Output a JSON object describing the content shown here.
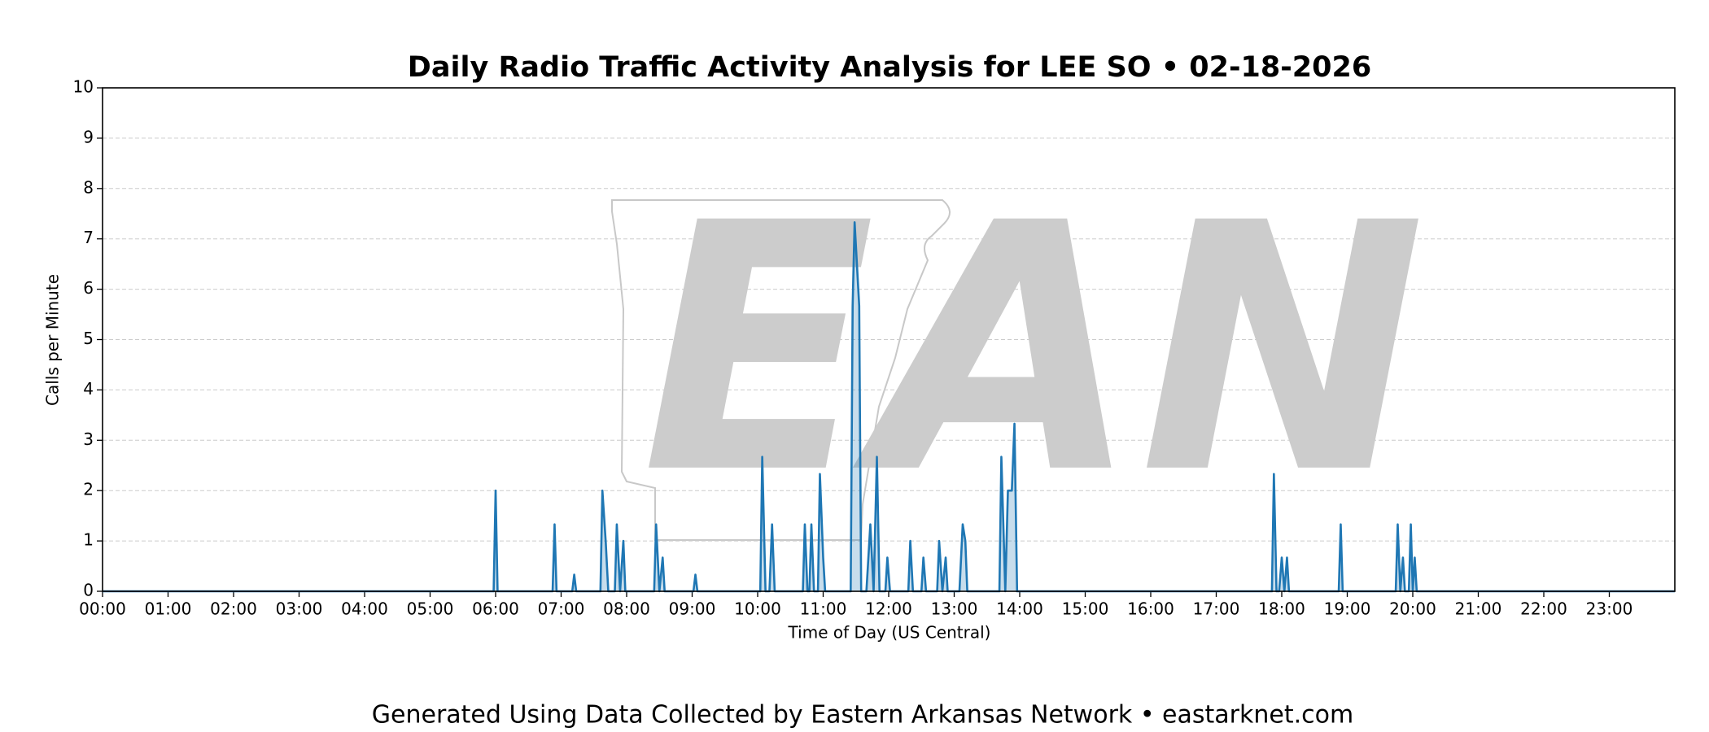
{
  "chart_data": {
    "type": "line",
    "title": "Daily Radio Traffic Activity Analysis for LEE SO • 02-18-2026",
    "x_label": "Time of Day (US Central)",
    "y_label": "Calls per Minute",
    "watermark": "EAN",
    "footer": "Generated Using Data Collected by Eastern Arkansas Network • eastarknet.com",
    "xlim": [
      0,
      24
    ],
    "ylim": [
      0,
      10
    ],
    "yticks": [
      0,
      1,
      2,
      3,
      4,
      5,
      6,
      7,
      8,
      9,
      10
    ],
    "xticks": [
      {
        "value": 0,
        "label": "00:00"
      },
      {
        "value": 1,
        "label": "01:00"
      },
      {
        "value": 2,
        "label": "02:00"
      },
      {
        "value": 3,
        "label": "03:00"
      },
      {
        "value": 4,
        "label": "04:00"
      },
      {
        "value": 5,
        "label": "05:00"
      },
      {
        "value": 6,
        "label": "06:00"
      },
      {
        "value": 7,
        "label": "07:00"
      },
      {
        "value": 8,
        "label": "08:00"
      },
      {
        "value": 9,
        "label": "09:00"
      },
      {
        "value": 10,
        "label": "10:00"
      },
      {
        "value": 11,
        "label": "11:00"
      },
      {
        "value": 12,
        "label": "12:00"
      },
      {
        "value": 13,
        "label": "13:00"
      },
      {
        "value": 14,
        "label": "14:00"
      },
      {
        "value": 15,
        "label": "15:00"
      },
      {
        "value": 16,
        "label": "16:00"
      },
      {
        "value": 17,
        "label": "17:00"
      },
      {
        "value": 18,
        "label": "18:00"
      },
      {
        "value": 19,
        "label": "19:00"
      },
      {
        "value": 20,
        "label": "20:00"
      },
      {
        "value": 21,
        "label": "21:00"
      },
      {
        "value": 22,
        "label": "22:00"
      },
      {
        "value": 23,
        "label": "23:00"
      }
    ],
    "grid": true,
    "color": "#1f77b4",
    "x": [
      0,
      5.97,
      6.0,
      6.03,
      6.87,
      6.9,
      6.93,
      7.17,
      7.2,
      7.23,
      7.6,
      7.63,
      7.68,
      7.72,
      7.82,
      7.85,
      7.9,
      7.95,
      7.98,
      8.42,
      8.45,
      8.5,
      8.55,
      8.58,
      9.02,
      9.05,
      9.08,
      10.04,
      10.07,
      10.12,
      10.18,
      10.22,
      10.26,
      10.69,
      10.72,
      10.76,
      10.79,
      10.82,
      10.86,
      10.92,
      10.95,
      11.0,
      11.03,
      11.42,
      11.45,
      11.48,
      11.55,
      11.58,
      11.66,
      11.72,
      11.77,
      11.82,
      11.86,
      11.95,
      11.98,
      12.02,
      12.3,
      12.33,
      12.37,
      12.5,
      12.53,
      12.57,
      12.74,
      12.77,
      12.82,
      12.87,
      12.9,
      13.08,
      13.13,
      13.17,
      13.2,
      13.69,
      13.72,
      13.78,
      13.82,
      13.88,
      13.92,
      13.96,
      17.85,
      17.88,
      17.92,
      17.96,
      18.0,
      18.04,
      18.08,
      18.11,
      18.87,
      18.9,
      18.93,
      19.74,
      19.77,
      19.81,
      19.85,
      19.88,
      19.94,
      19.97,
      20.0,
      20.03,
      20.06,
      24
    ],
    "values": [
      0,
      0,
      2,
      0,
      0,
      1.33,
      0,
      0,
      0.33,
      0,
      0,
      2,
      1,
      0,
      0,
      1.33,
      0,
      1,
      0,
      0,
      1.33,
      0,
      0.67,
      0,
      0,
      0.33,
      0,
      0,
      2.67,
      0,
      0,
      1.33,
      0,
      0,
      1.33,
      0,
      0,
      1.33,
      0,
      0,
      2.33,
      0.67,
      0,
      0,
      5.67,
      7.33,
      5.67,
      0,
      0,
      1.33,
      0,
      2.67,
      0,
      0,
      0.67,
      0,
      0,
      1,
      0,
      0,
      0.67,
      0,
      0,
      1,
      0,
      0.67,
      0,
      0,
      1.33,
      1,
      0,
      0,
      2.67,
      0,
      2,
      2,
      3.33,
      0,
      0,
      2.33,
      0,
      0,
      0.67,
      0,
      0.67,
      0,
      0,
      1.33,
      0,
      0,
      1.33,
      0,
      0.67,
      0,
      0,
      1.33,
      0,
      0.67,
      0,
      0
    ]
  }
}
